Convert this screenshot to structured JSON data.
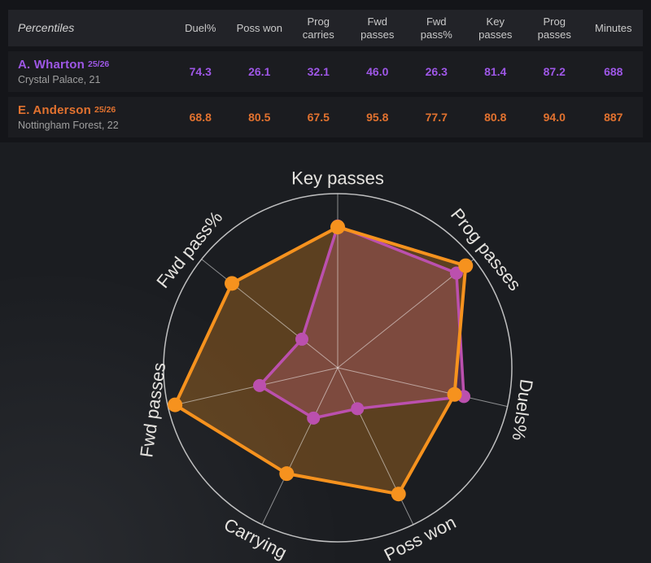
{
  "table": {
    "header": {
      "label": "Percentiles",
      "columns": [
        "Duel%",
        "Poss won",
        "Prog\ncarries",
        "Fwd\npasses",
        "Fwd\npass%",
        "Key\npasses",
        "Prog\npasses",
        "Minutes"
      ]
    },
    "rows": [
      {
        "name": "A. Wharton",
        "season": "25/26",
        "subtitle": "Crystal Palace, 21",
        "color": "#9e57e6",
        "values": [
          "74.3",
          "26.1",
          "32.1",
          "46.0",
          "26.3",
          "81.4",
          "87.2",
          "688"
        ]
      },
      {
        "name": "E. Anderson",
        "season": "25/26",
        "subtitle": "Nottingham Forest, 22",
        "color": "#e2722f",
        "values": [
          "68.8",
          "80.5",
          "67.5",
          "95.8",
          "77.7",
          "80.8",
          "94.0",
          "887"
        ]
      }
    ]
  },
  "chart_data": {
    "type": "radar",
    "categories": [
      "Key passes",
      "Prog passes",
      "Duels%",
      "Poss won",
      "Carrying",
      "Fwd passes",
      "Fwd pass%"
    ],
    "series": [
      {
        "name": "A. Wharton 25/26",
        "color": "#bb50ae",
        "fill_opacity": 0.3,
        "values": [
          81.4,
          87.2,
          74.3,
          26.1,
          32.1,
          46.0,
          26.3
        ]
      },
      {
        "name": "E. Anderson 25/26",
        "color": "#f6921e",
        "fill_opacity": 0.3,
        "values": [
          80.8,
          94.0,
          68.8,
          80.5,
          67.5,
          95.8,
          77.7
        ]
      }
    ],
    "rmax": 100,
    "start": "top",
    "direction": "clockwise",
    "grid": "spokes-and-outer-ring-only",
    "ring_color": "#dcdcdc",
    "spoke_color": "rgba(255,255,255,0.5)",
    "label_color": "#e5e3df",
    "label_rotations_deg": [
      0,
      51,
      98,
      -27,
      27,
      -82,
      -51
    ]
  }
}
